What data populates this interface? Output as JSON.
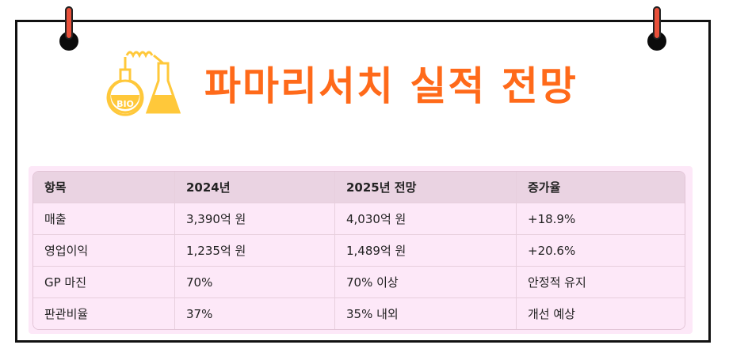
{
  "title": "파마리서치 실적 전망",
  "icon": {
    "name": "flask-icon",
    "text": "BIO",
    "color": "#ffc83a"
  },
  "colors": {
    "accent": "#ff6a1a",
    "table_header": "#ead3e2",
    "table_body": "#fde8f8"
  },
  "table": {
    "headers": [
      "항목",
      "2024년",
      "2025년 전망",
      "증가율"
    ],
    "rows": [
      [
        "매출",
        "3,390억 원",
        "4,030억 원",
        "+18.9%"
      ],
      [
        "영업이익",
        "1,235억 원",
        "1,489억 원",
        "+20.6%"
      ],
      [
        "GP 마진",
        "70%",
        "70% 이상",
        "안정적 유지"
      ],
      [
        "판관비율",
        "37%",
        "35% 내외",
        "개선 예상"
      ]
    ]
  }
}
